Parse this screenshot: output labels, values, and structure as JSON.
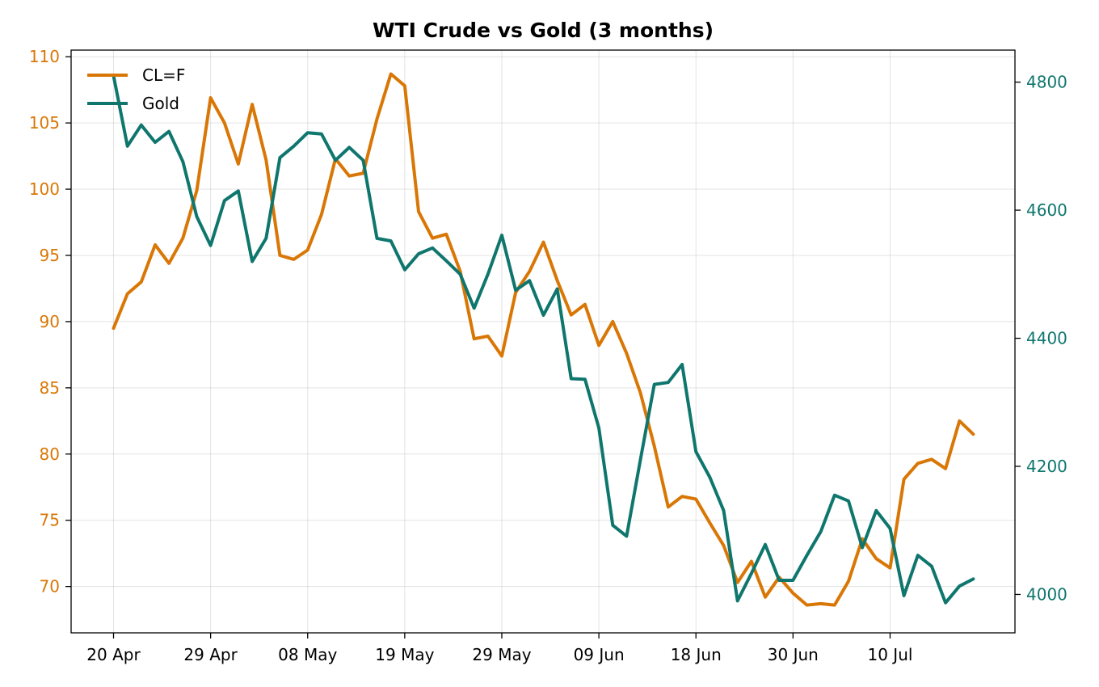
{
  "chart_data": {
    "type": "line",
    "title": "WTI Crude vs Gold (3 months)",
    "xlabel": "",
    "legend_position": "top-left",
    "grid": true,
    "x_tick_labels": [
      "20 Apr",
      "29 Apr",
      "08 May",
      "19 May",
      "29 May",
      "09 Jun",
      "18 Jun",
      "30 Jun",
      "10 Jul"
    ],
    "x_tick_index": [
      0,
      7,
      14,
      21,
      28,
      35,
      42,
      49,
      56
    ],
    "y_left": {
      "ylim": [
        66.5,
        110.5
      ],
      "ticks": [
        70,
        75,
        80,
        85,
        90,
        95,
        100,
        105,
        110
      ],
      "color": "#d97706"
    },
    "y_right": {
      "ylim": [
        3940,
        4850
      ],
      "ticks": [
        4000,
        4200,
        4400,
        4600,
        4800
      ],
      "color": "#0f766e"
    },
    "series": [
      {
        "name": "CL=F",
        "axis": "left",
        "color": "#d97706",
        "values": [
          89.5,
          92.1,
          93.0,
          95.8,
          94.4,
          96.3,
          99.9,
          106.9,
          105.0,
          101.9,
          106.4,
          102.2,
          95.0,
          94.7,
          95.4,
          98.1,
          102.3,
          101.0,
          101.2,
          105.3,
          108.7,
          107.8,
          98.3,
          96.3,
          96.6,
          93.8,
          88.7,
          88.9,
          87.4,
          92.2,
          93.8,
          96.0,
          93.1,
          90.5,
          91.3,
          88.2,
          90.0,
          87.6,
          84.6,
          80.6,
          76.0,
          76.8,
          76.6,
          74.8,
          73.1,
          70.3,
          71.9,
          69.2,
          70.7,
          69.5,
          68.6,
          68.7,
          68.6,
          70.4,
          73.6,
          72.1,
          71.4,
          78.1,
          79.3,
          79.6,
          78.9,
          82.5,
          81.5
        ]
      },
      {
        "name": "Gold",
        "axis": "right",
        "color": "#0f766e",
        "values": [
          4810,
          4700,
          4733,
          4706,
          4723,
          4676,
          4590,
          4545,
          4615,
          4630,
          4520,
          4556,
          4682,
          4700,
          4721,
          4719,
          4678,
          4698,
          4678,
          4556,
          4552,
          4507,
          4532,
          4541,
          4521,
          4500,
          4447,
          4500,
          4561,
          4475,
          4490,
          4436,
          4477,
          4337,
          4336,
          4260,
          4108,
          4091,
          4211,
          4328,
          4331,
          4359,
          4223,
          4183,
          4131,
          3990,
          4033,
          4078,
          4022,
          4022,
          4061,
          4098,
          4155,
          4146,
          4073,
          4131,
          4103,
          3998,
          4061,
          4044,
          3987,
          4013,
          4024
        ]
      }
    ]
  }
}
